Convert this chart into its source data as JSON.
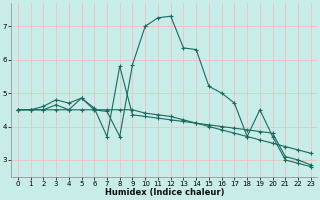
{
  "title": "",
  "xlabel": "Humidex (Indice chaleur)",
  "ylabel": "",
  "background_color": "#c8ece8",
  "line_color": "#1a6b5e",
  "grid_color": "#f0c0c0",
  "xlim": [
    -0.5,
    23.5
  ],
  "ylim": [
    2.5,
    7.7
  ],
  "xticks": [
    0,
    1,
    2,
    3,
    4,
    5,
    6,
    7,
    8,
    9,
    10,
    11,
    12,
    13,
    14,
    15,
    16,
    17,
    18,
    19,
    20,
    21,
    22,
    23
  ],
  "yticks": [
    3,
    4,
    5,
    6,
    7
  ],
  "series": [
    {
      "x": [
        0,
        1,
        2,
        3,
        4,
        5,
        6,
        7,
        8,
        9,
        10,
        11,
        12,
        13,
        14,
        15,
        16,
        17,
        18,
        19,
        20,
        21,
        22,
        23
      ],
      "y": [
        4.5,
        4.5,
        4.6,
        4.8,
        4.7,
        4.85,
        4.5,
        4.45,
        3.7,
        5.85,
        7.0,
        7.25,
        7.3,
        6.35,
        6.3,
        5.2,
        5.0,
        4.7,
        3.7,
        4.5,
        3.7,
        3.0,
        2.9,
        2.8
      ]
    },
    {
      "x": [
        0,
        1,
        2,
        3,
        4,
        5,
        6,
        7,
        8,
        9,
        10,
        11,
        12,
        13,
        14,
        15,
        16,
        17,
        18,
        19,
        20,
        21,
        22,
        23
      ],
      "y": [
        4.5,
        4.5,
        4.5,
        4.5,
        4.5,
        4.5,
        4.5,
        4.5,
        4.5,
        4.5,
        4.4,
        4.35,
        4.3,
        4.2,
        4.1,
        4.0,
        3.9,
        3.8,
        3.7,
        3.6,
        3.5,
        3.4,
        3.3,
        3.2
      ]
    },
    {
      "x": [
        0,
        1,
        2,
        3,
        4,
        5,
        6,
        7,
        8,
        9,
        10,
        11,
        12,
        13,
        14,
        15,
        16,
        17,
        18,
        19,
        20,
        21,
        22,
        23
      ],
      "y": [
        4.5,
        4.5,
        4.5,
        4.65,
        4.5,
        4.85,
        4.55,
        3.7,
        5.8,
        4.35,
        4.3,
        4.25,
        4.2,
        4.15,
        4.1,
        4.05,
        4.0,
        3.95,
        3.9,
        3.85,
        3.8,
        3.1,
        3.0,
        2.85
      ]
    }
  ]
}
